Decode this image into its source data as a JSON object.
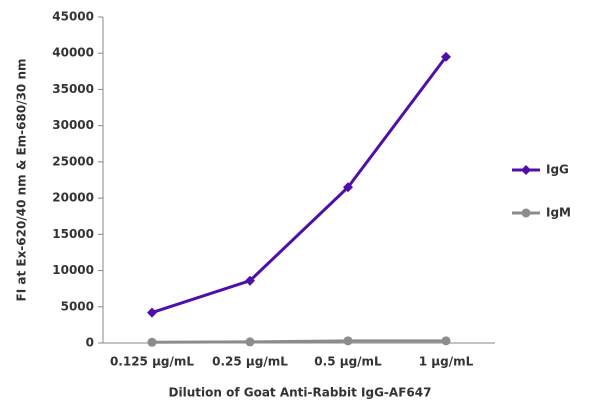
{
  "chart_data": {
    "type": "line",
    "x_label": "Dilution of Goat Anti-Rabbit IgG-AF647",
    "y_label": "FI at Ex-620/40 nm & Em-680/30 nm",
    "categories": [
      "0.125 µg/mL",
      "0.25 µg/mL",
      "0.5 µg/mL",
      "1 µg/mL"
    ],
    "series": [
      {
        "name": "IgG",
        "color": "#5010a8",
        "marker": "diamond",
        "values": [
          4200,
          8600,
          21500,
          39500
        ]
      },
      {
        "name": "IgM",
        "color": "#8c8c8c",
        "marker": "circle",
        "values": [
          100,
          150,
          300,
          300
        ]
      }
    ],
    "ylim": [
      0,
      45000
    ],
    "yticks": [
      0,
      5000,
      10000,
      15000,
      20000,
      25000,
      30000,
      35000,
      40000,
      45000
    ],
    "grid": false
  }
}
